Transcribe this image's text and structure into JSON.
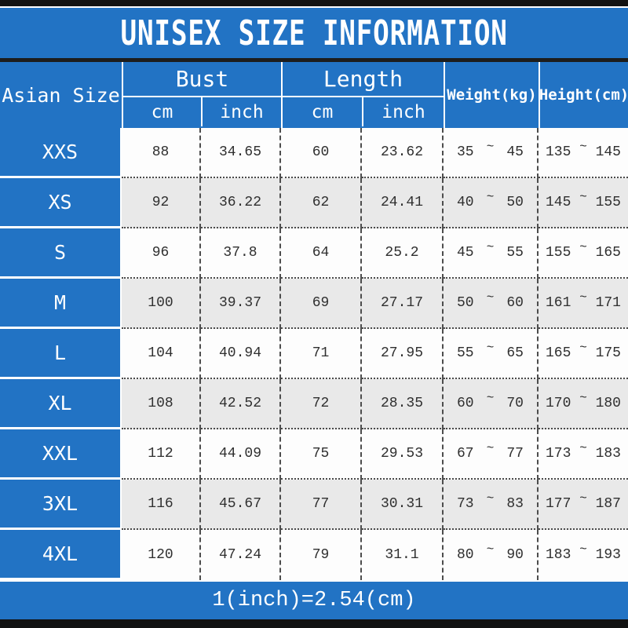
{
  "title": "UNISEX SIZE INFORMATION",
  "footer_note": "1(inch)=2.54(cm)",
  "colors": {
    "blue": "#2273c4",
    "black_bar": "#121212",
    "gray_row": "#e9e9e9",
    "white_row": "#fdfdfd",
    "data_text": "#2f2f2f"
  },
  "table": {
    "tilde": "~",
    "size_column_header": "Asian Size",
    "groups": [
      {
        "label": "Bust",
        "sub": [
          "cm",
          "inch"
        ]
      },
      {
        "label": "Length",
        "sub": [
          "cm",
          "inch"
        ]
      }
    ],
    "single_headers": [
      "Weight(kg)",
      "Height(cm)"
    ],
    "rows": [
      {
        "size": "XXS",
        "bust_cm": "88",
        "bust_inch": "34.65",
        "length_cm": "60",
        "length_inch": "23.62",
        "weight_min": "35",
        "weight_max": "45",
        "height_min": "135",
        "height_max": "145"
      },
      {
        "size": "XS",
        "bust_cm": "92",
        "bust_inch": "36.22",
        "length_cm": "62",
        "length_inch": "24.41",
        "weight_min": "40",
        "weight_max": "50",
        "height_min": "145",
        "height_max": "155"
      },
      {
        "size": "S",
        "bust_cm": "96",
        "bust_inch": "37.8",
        "length_cm": "64",
        "length_inch": "25.2",
        "weight_min": "45",
        "weight_max": "55",
        "height_min": "155",
        "height_max": "165"
      },
      {
        "size": "M",
        "bust_cm": "100",
        "bust_inch": "39.37",
        "length_cm": "69",
        "length_inch": "27.17",
        "weight_min": "50",
        "weight_max": "60",
        "height_min": "161",
        "height_max": "171"
      },
      {
        "size": "L",
        "bust_cm": "104",
        "bust_inch": "40.94",
        "length_cm": "71",
        "length_inch": "27.95",
        "weight_min": "55",
        "weight_max": "65",
        "height_min": "165",
        "height_max": "175"
      },
      {
        "size": "XL",
        "bust_cm": "108",
        "bust_inch": "42.52",
        "length_cm": "72",
        "length_inch": "28.35",
        "weight_min": "60",
        "weight_max": "70",
        "height_min": "170",
        "height_max": "180"
      },
      {
        "size": "XXL",
        "bust_cm": "112",
        "bust_inch": "44.09",
        "length_cm": "75",
        "length_inch": "29.53",
        "weight_min": "67",
        "weight_max": "77",
        "height_min": "173",
        "height_max": "183"
      },
      {
        "size": "3XL",
        "bust_cm": "116",
        "bust_inch": "45.67",
        "length_cm": "77",
        "length_inch": "30.31",
        "weight_min": "73",
        "weight_max": "83",
        "height_min": "177",
        "height_max": "187"
      },
      {
        "size": "4XL",
        "bust_cm": "120",
        "bust_inch": "47.24",
        "length_cm": "79",
        "length_inch": "31.1",
        "weight_min": "80",
        "weight_max": "90",
        "height_min": "183",
        "height_max": "193"
      }
    ]
  }
}
